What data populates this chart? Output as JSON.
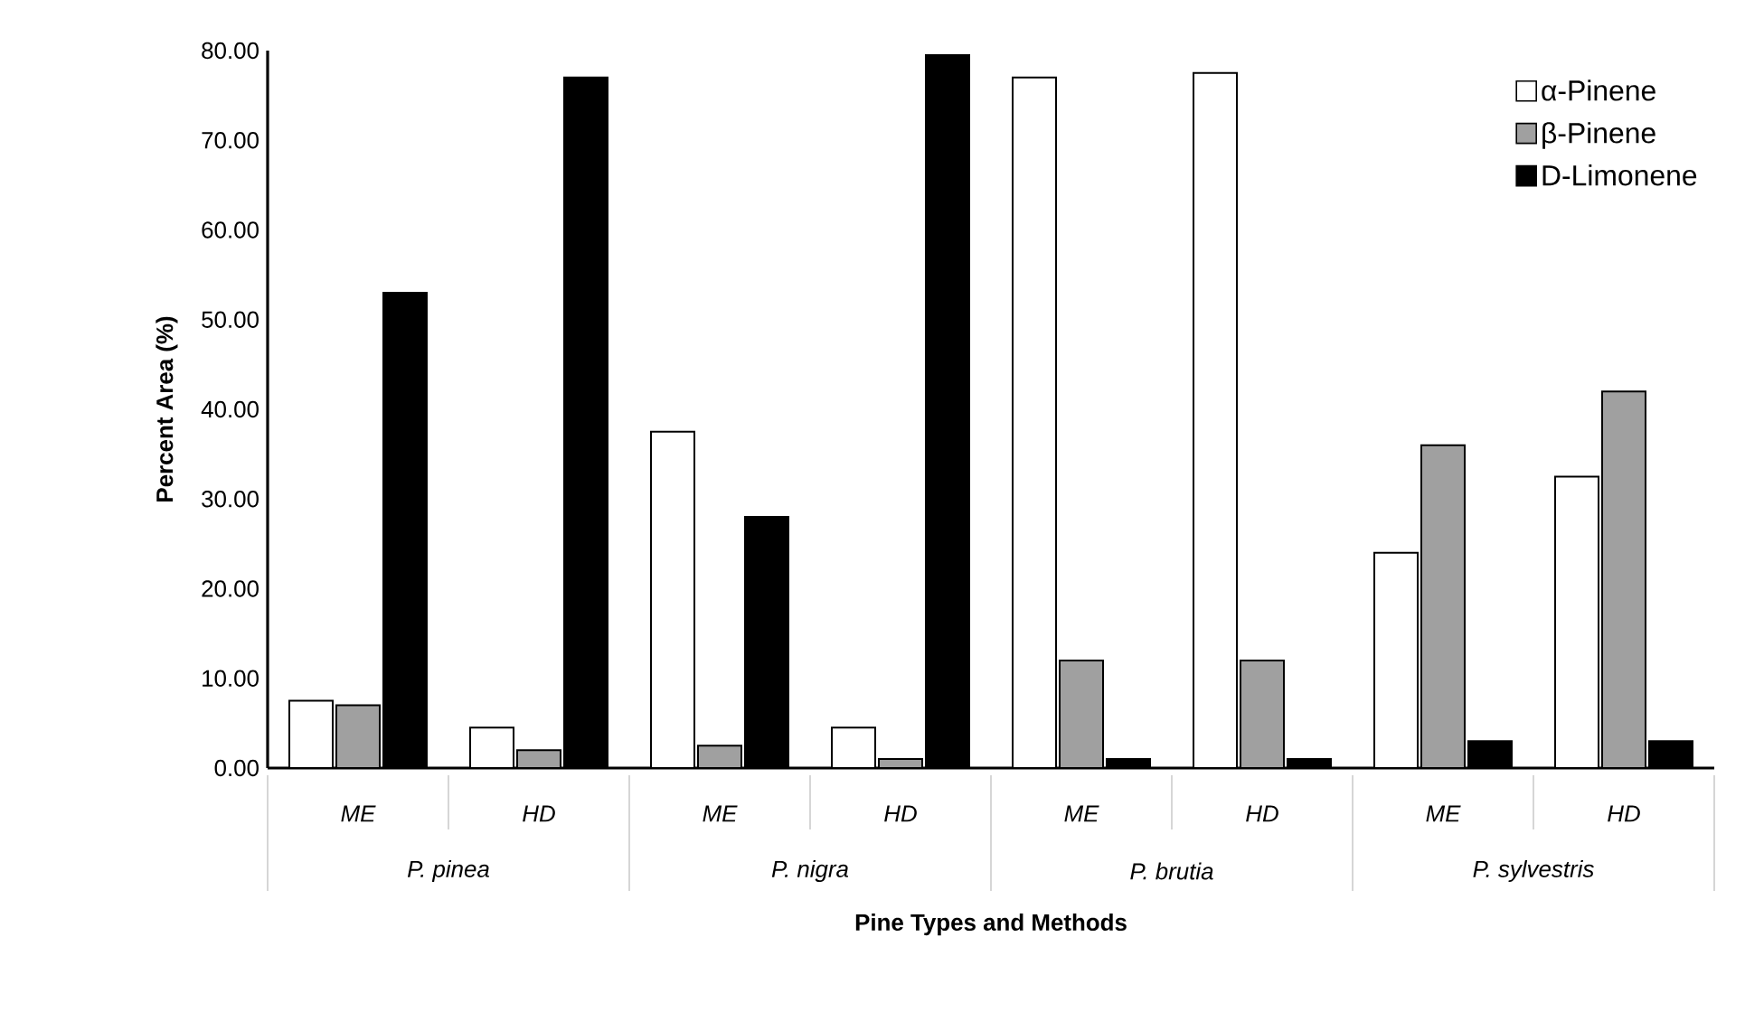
{
  "chart_data": {
    "type": "bar",
    "xlabel": "Pine Types and Methods",
    "ylabel": "Percent Area (%)",
    "categories": [
      "ME",
      "HD",
      "ME",
      "HD",
      "ME",
      "HD",
      "ME",
      "HD"
    ],
    "annotations": [
      "P. pinea",
      "P. nigra",
      "P. brutia",
      "P. sylvestris"
    ],
    "series": [
      {
        "name": "α-Pinene",
        "color": "#ffffff",
        "values": [
          7.5,
          4.5,
          37.5,
          4.5,
          77,
          77.5,
          24,
          32.5
        ]
      },
      {
        "name": "β-Pinene",
        "color": "#a0a0a0",
        "values": [
          7,
          2,
          2.5,
          1,
          12,
          12,
          36,
          42
        ]
      },
      {
        "name": "D-Limonene",
        "color": "#000000",
        "values": [
          53,
          77,
          28,
          79.5,
          1,
          1,
          3,
          3
        ]
      }
    ],
    "ylim": [
      0,
      80
    ],
    "yticks": [
      {
        "value": 0,
        "label": "0.00"
      },
      {
        "value": 10,
        "label": "10.00"
      },
      {
        "value": 20,
        "label": "20.00"
      },
      {
        "value": 30,
        "label": "30.00"
      },
      {
        "value": 40,
        "label": "40.00"
      },
      {
        "value": 50,
        "label": "50.00"
      },
      {
        "value": 60,
        "label": "60.00"
      },
      {
        "value": 70,
        "label": "70.00"
      },
      {
        "value": 80,
        "label": "80.00"
      }
    ],
    "grid": false,
    "legend": "top right"
  }
}
